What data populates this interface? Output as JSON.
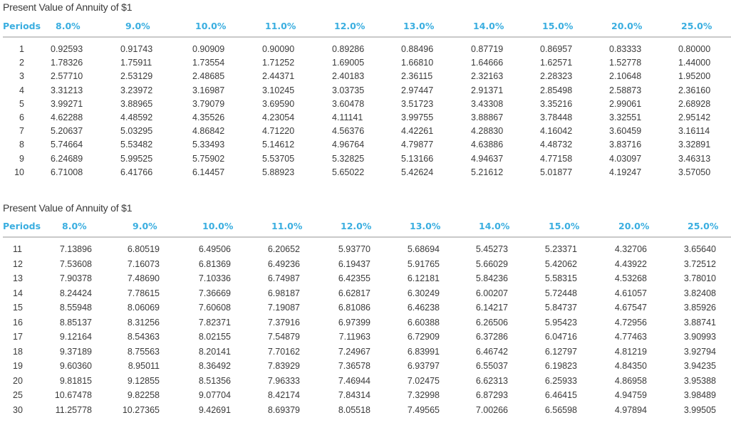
{
  "tables": [
    {
      "title": "Present Value of Annuity of $1",
      "headers": [
        "Periods",
        "8.0%",
        "9.0%",
        "10.0%",
        "11.0%",
        "12.0%",
        "13.0%",
        "14.0%",
        "15.0%",
        "20.0%",
        "25.0%"
      ],
      "rows": [
        [
          "1",
          "0.92593",
          "0.91743",
          "0.90909",
          "0.90090",
          "0.89286",
          "0.88496",
          "0.87719",
          "0.86957",
          "0.83333",
          "0.80000"
        ],
        [
          "2",
          "1.78326",
          "1.75911",
          "1.73554",
          "1.71252",
          "1.69005",
          "1.66810",
          "1.64666",
          "1.62571",
          "1.52778",
          "1.44000"
        ],
        [
          "3",
          "2.57710",
          "2.53129",
          "2.48685",
          "2.44371",
          "2.40183",
          "2.36115",
          "2.32163",
          "2.28323",
          "2.10648",
          "1.95200"
        ],
        [
          "4",
          "3.31213",
          "3.23972",
          "3.16987",
          "3.10245",
          "3.03735",
          "2.97447",
          "2.91371",
          "2.85498",
          "2.58873",
          "2.36160"
        ],
        [
          "5",
          "3.99271",
          "3.88965",
          "3.79079",
          "3.69590",
          "3.60478",
          "3.51723",
          "3.43308",
          "3.35216",
          "2.99061",
          "2.68928"
        ],
        [
          "6",
          "4.62288",
          "4.48592",
          "4.35526",
          "4.23054",
          "4.11141",
          "3.99755",
          "3.88867",
          "3.78448",
          "3.32551",
          "2.95142"
        ],
        [
          "7",
          "5.20637",
          "5.03295",
          "4.86842",
          "4.71220",
          "4.56376",
          "4.42261",
          "4.28830",
          "4.16042",
          "3.60459",
          "3.16114"
        ],
        [
          "8",
          "5.74664",
          "5.53482",
          "5.33493",
          "5.14612",
          "4.96764",
          "4.79877",
          "4.63886",
          "4.48732",
          "3.83716",
          "3.32891"
        ],
        [
          "9",
          "6.24689",
          "5.99525",
          "5.75902",
          "5.53705",
          "5.32825",
          "5.13166",
          "4.94637",
          "4.77158",
          "4.03097",
          "3.46313"
        ],
        [
          "10",
          "6.71008",
          "6.41766",
          "6.14457",
          "5.88923",
          "5.65022",
          "5.42624",
          "5.21612",
          "5.01877",
          "4.19247",
          "3.57050"
        ]
      ]
    },
    {
      "title": "Present Value of Annuity of $1",
      "headers": [
        "Periods",
        "8.0%",
        "9.0%",
        "10.0%",
        "11.0%",
        "12.0%",
        "13.0%",
        "14.0%",
        "15.0%",
        "20.0%",
        "25.0%"
      ],
      "rows": [
        [
          "11",
          "7.13896",
          "6.80519",
          "6.49506",
          "6.20652",
          "5.93770",
          "5.68694",
          "5.45273",
          "5.23371",
          "4.32706",
          "3.65640"
        ],
        [
          "12",
          "7.53608",
          "7.16073",
          "6.81369",
          "6.49236",
          "6.19437",
          "5.91765",
          "5.66029",
          "5.42062",
          "4.43922",
          "3.72512"
        ],
        [
          "13",
          "7.90378",
          "7.48690",
          "7.10336",
          "6.74987",
          "6.42355",
          "6.12181",
          "5.84236",
          "5.58315",
          "4.53268",
          "3.78010"
        ],
        [
          "14",
          "8.24424",
          "7.78615",
          "7.36669",
          "6.98187",
          "6.62817",
          "6.30249",
          "6.00207",
          "5.72448",
          "4.61057",
          "3.82408"
        ],
        [
          "15",
          "8.55948",
          "8.06069",
          "7.60608",
          "7.19087",
          "6.81086",
          "6.46238",
          "6.14217",
          "5.84737",
          "4.67547",
          "3.85926"
        ],
        [
          "16",
          "8.85137",
          "8.31256",
          "7.82371",
          "7.37916",
          "6.97399",
          "6.60388",
          "6.26506",
          "5.95423",
          "4.72956",
          "3.88741"
        ],
        [
          "17",
          "9.12164",
          "8.54363",
          "8.02155",
          "7.54879",
          "7.11963",
          "6.72909",
          "6.37286",
          "6.04716",
          "4.77463",
          "3.90993"
        ],
        [
          "18",
          "9.37189",
          "8.75563",
          "8.20141",
          "7.70162",
          "7.24967",
          "6.83991",
          "6.46742",
          "6.12797",
          "4.81219",
          "3.92794"
        ],
        [
          "19",
          "9.60360",
          "8.95011",
          "8.36492",
          "7.83929",
          "7.36578",
          "6.93797",
          "6.55037",
          "6.19823",
          "4.84350",
          "3.94235"
        ],
        [
          "20",
          "9.81815",
          "9.12855",
          "8.51356",
          "7.96333",
          "7.46944",
          "7.02475",
          "6.62313",
          "6.25933",
          "4.86958",
          "3.95388"
        ],
        [
          "25",
          "10.67478",
          "9.82258",
          "9.07704",
          "8.42174",
          "7.84314",
          "7.32998",
          "6.87293",
          "6.46415",
          "4.94759",
          "3.98489"
        ],
        [
          "30",
          "11.25778",
          "10.27365",
          "9.42691",
          "8.69379",
          "8.05518",
          "7.49565",
          "7.00266",
          "6.56598",
          "4.97894",
          "3.99505"
        ]
      ]
    }
  ],
  "colors": {
    "header_accent": "#3aaee0",
    "text": "#3a3a3a",
    "rule": "#c9c9c9"
  }
}
